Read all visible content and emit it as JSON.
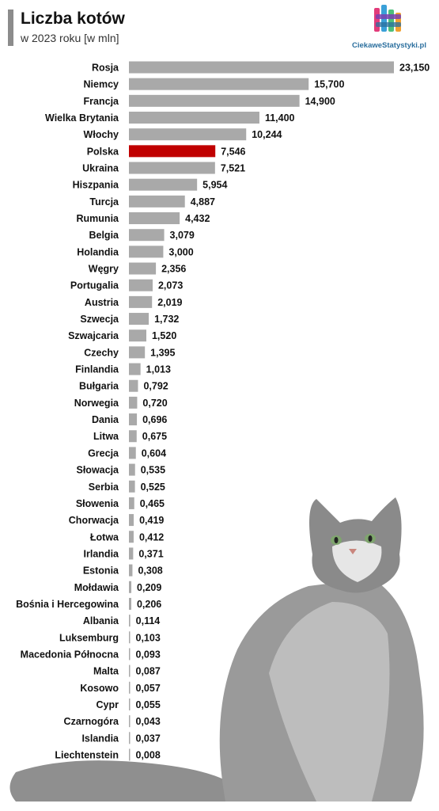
{
  "header": {
    "title": "Liczba kotów",
    "subtitle": "w 2023 roku [w mln]"
  },
  "logo": {
    "text": "CiekaweStatystyki.pl"
  },
  "colors": {
    "bar": "#a9a9a9",
    "highlight": "#c00000",
    "accent_bar": "#8c8c8c"
  },
  "chart_data": {
    "type": "bar",
    "orientation": "horizontal",
    "title": "Liczba kotów",
    "subtitle": "w 2023 roku [w mln]",
    "highlight": "Polska",
    "categories": [
      "Rosja",
      "Niemcy",
      "Francja",
      "Wielka Brytania",
      "Włochy",
      "Polska",
      "Ukraina",
      "Hiszpania",
      "Turcja",
      "Rumunia",
      "Belgia",
      "Holandia",
      "Węgry",
      "Portugalia",
      "Austria",
      "Szwecja",
      "Szwajcaria",
      "Czechy",
      "Finlandia",
      "Bułgaria",
      "Norwegia",
      "Dania",
      "Litwa",
      "Grecja",
      "Słowacja",
      "Serbia",
      "Słowenia",
      "Chorwacja",
      "Łotwa",
      "Irlandia",
      "Estonia",
      "Mołdawia",
      "Bośnia i Hercegowina",
      "Albania",
      "Luksemburg",
      "Macedonia Północna",
      "Malta",
      "Kosowo",
      "Cypr",
      "Czarnogóra",
      "Islandia",
      "Liechtenstein"
    ],
    "values": [
      23.15,
      15.7,
      14.9,
      11.4,
      10.244,
      7.546,
      7.521,
      5.954,
      4.887,
      4.432,
      3.079,
      3.0,
      2.356,
      2.073,
      2.019,
      1.732,
      1.52,
      1.395,
      1.013,
      0.792,
      0.72,
      0.696,
      0.675,
      0.604,
      0.535,
      0.525,
      0.465,
      0.419,
      0.412,
      0.371,
      0.308,
      0.209,
      0.206,
      0.114,
      0.103,
      0.093,
      0.087,
      0.057,
      0.055,
      0.043,
      0.037,
      0.008
    ],
    "value_labels": [
      "23,150",
      "15,700",
      "14,900",
      "11,400",
      "10,244",
      "7,546",
      "7,521",
      "5,954",
      "4,887",
      "4,432",
      "3,079",
      "3,000",
      "2,356",
      "2,073",
      "2,019",
      "1,732",
      "1,520",
      "1,395",
      "1,013",
      "0,792",
      "0,720",
      "0,696",
      "0,675",
      "0,604",
      "0,535",
      "0,525",
      "0,465",
      "0,419",
      "0,412",
      "0,371",
      "0,308",
      "0,209",
      "0,206",
      "0,114",
      "0,103",
      "0,093",
      "0,087",
      "0,057",
      "0,055",
      "0,043",
      "0,037",
      "0,008"
    ]
  }
}
